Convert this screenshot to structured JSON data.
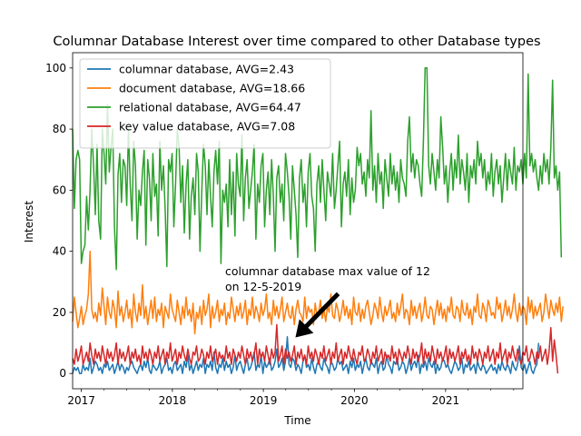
{
  "chart_data": {
    "type": "line",
    "title": "Columnar Database Interest over time compared to other Database types",
    "xlabel": "Time",
    "ylabel": "Interest",
    "xlim": [
      "2016-11-27",
      "2021-11-07"
    ],
    "ylim": [
      -5,
      105
    ],
    "x_ticks": [
      "2017",
      "2018",
      "2019",
      "2020",
      "2021"
    ],
    "y_ticks": [
      "0",
      "20",
      "40",
      "60",
      "80",
      "100"
    ],
    "grid": false,
    "legend": "top-left",
    "series_x": {
      "start": "2016-11-27",
      "end": "2021-11-07",
      "frequency": "weekly"
    },
    "series": [
      {
        "name": "columnar database, AVG=2.43",
        "color": "#1f77b4",
        "values": [
          0,
          2,
          1,
          2,
          0,
          0,
          3,
          1,
          2,
          1,
          5,
          0,
          2,
          4,
          3,
          1,
          2,
          0,
          3,
          2,
          4,
          1,
          2,
          3,
          0,
          2,
          4,
          1,
          3,
          2,
          0,
          2,
          1,
          3,
          4,
          2,
          1,
          0,
          2,
          3,
          1,
          4,
          2,
          5,
          1,
          0,
          3,
          2,
          1,
          2,
          4,
          0,
          2,
          3,
          5,
          1,
          2,
          0,
          3,
          4,
          1,
          2,
          3,
          0,
          4,
          2,
          6,
          1,
          3,
          0,
          2,
          4,
          1,
          3,
          2,
          5,
          0,
          3,
          2,
          4,
          1,
          7,
          2,
          0,
          3,
          2,
          5,
          1,
          4,
          2,
          3,
          0,
          2,
          6,
          1,
          3,
          4,
          2,
          0,
          3,
          5,
          1,
          2,
          4,
          7,
          1,
          3,
          2,
          6,
          0,
          4,
          2,
          3,
          5,
          1,
          2,
          4,
          8,
          2,
          3,
          5,
          1,
          4,
          12,
          3,
          2,
          5,
          4,
          1,
          3,
          2,
          0,
          4,
          6,
          2,
          3,
          1,
          5,
          2,
          0,
          3,
          4,
          2,
          1,
          5,
          3,
          2,
          0,
          4,
          3,
          1,
          2,
          5,
          3,
          4,
          1,
          2,
          3,
          0,
          4,
          2,
          5,
          1,
          3,
          2,
          4,
          0,
          3,
          5,
          2,
          1,
          4,
          3,
          2,
          5,
          0,
          3,
          4,
          1,
          2,
          6,
          3,
          2,
          0,
          4,
          3,
          5,
          1,
          2,
          4,
          3,
          0,
          2,
          5,
          1,
          3,
          4,
          2,
          6,
          0,
          3,
          2,
          4,
          1,
          5,
          3,
          2,
          4,
          0,
          3,
          1,
          2,
          5,
          4,
          2,
          3,
          1,
          0,
          2,
          4,
          3,
          1,
          2,
          5,
          0,
          3,
          2,
          4,
          1,
          2,
          3,
          0,
          4,
          2,
          1,
          3,
          2,
          0,
          1,
          2,
          3,
          1,
          2,
          0,
          3,
          1,
          4,
          2,
          1,
          3,
          2,
          0,
          4,
          2,
          1,
          3,
          9,
          2,
          1,
          3,
          0,
          2,
          4,
          1,
          0,
          2,
          3,
          10
        ]
      },
      {
        "name": "document database, AVG=18.66",
        "color": "#ff7f0e",
        "values": [
          17,
          25,
          20,
          15,
          18,
          22,
          16,
          19,
          21,
          26,
          40,
          21,
          18,
          20,
          17,
          23,
          19,
          28,
          22,
          16,
          25,
          20,
          18,
          24,
          21,
          15,
          27,
          19,
          22,
          17,
          20,
          24,
          18,
          21,
          15,
          26,
          20,
          17,
          23,
          19,
          29,
          18,
          22,
          16,
          20,
          24,
          18,
          25,
          17,
          21,
          19,
          23,
          15,
          22,
          20,
          18,
          26,
          21,
          19,
          17,
          24,
          20,
          16,
          22,
          18,
          25,
          19,
          21,
          17,
          23,
          13,
          20,
          18,
          22,
          16,
          24,
          19,
          21,
          26,
          15,
          22,
          18,
          20,
          24,
          17,
          21,
          19,
          23,
          16,
          20,
          18,
          25,
          21,
          17,
          22,
          19,
          23,
          18,
          20,
          24,
          16,
          21,
          19,
          25,
          18,
          22,
          20,
          17,
          23,
          19,
          21,
          26,
          18,
          20,
          16,
          24,
          19,
          22,
          18,
          21,
          25,
          17,
          20,
          23,
          19,
          18,
          22,
          16,
          21,
          24,
          20,
          19,
          17,
          25,
          18,
          22,
          20,
          21,
          16,
          23,
          19,
          20,
          24,
          18,
          21,
          17,
          22,
          20,
          26,
          19,
          18,
          23,
          21,
          17,
          20,
          24,
          19,
          22,
          18,
          21,
          16,
          25,
          20,
          19,
          23,
          17,
          21,
          18,
          22,
          24,
          20,
          16,
          19,
          23,
          21,
          18,
          25,
          20,
          17,
          22,
          19,
          21,
          24,
          18,
          20,
          17,
          23,
          19,
          22,
          26,
          18,
          21,
          20,
          16,
          24,
          19,
          22,
          18,
          21,
          23,
          17,
          20,
          25,
          19,
          18,
          22,
          21,
          16,
          20,
          24,
          19,
          23,
          18,
          21,
          17,
          22,
          20,
          25,
          19,
          18,
          22,
          21,
          17,
          24,
          20,
          19,
          23,
          18,
          21,
          16,
          22,
          20,
          26,
          19,
          18,
          23,
          21,
          17,
          24,
          22,
          19,
          20,
          18,
          25,
          21,
          23,
          17,
          20,
          24,
          19,
          22,
          18,
          21,
          26,
          20,
          17,
          23,
          19,
          22,
          21,
          16,
          25,
          20,
          24,
          18,
          22,
          19,
          21,
          23,
          17,
          20,
          26,
          22,
          18,
          24,
          21,
          19,
          23,
          20,
          25,
          17,
          22
        ]
      },
      {
        "name": "relational database, AVG=64.47",
        "color": "#2ca02c",
        "values": [
          80,
          54,
          70,
          73,
          70,
          36,
          40,
          42,
          58,
          47,
          60,
          80,
          68,
          52,
          75,
          50,
          44,
          80,
          72,
          62,
          88,
          66,
          74,
          80,
          48,
          34,
          65,
          72,
          56,
          70,
          68,
          55,
          80,
          62,
          50,
          76,
          68,
          44,
          60,
          55,
          66,
          73,
          42,
          70,
          64,
          50,
          72,
          58,
          62,
          45,
          76,
          60,
          68,
          54,
          35,
          70,
          66,
          72,
          48,
          62,
          80,
          74,
          56,
          68,
          46,
          62,
          70,
          44,
          58,
          64,
          52,
          72,
          66,
          40,
          60,
          75,
          68,
          52,
          70,
          58,
          48,
          66,
          73,
          62,
          76,
          36,
          60,
          56,
          62,
          48,
          70,
          52,
          66,
          45,
          72,
          62,
          58,
          78,
          50,
          64,
          70,
          54,
          60,
          66,
          75,
          44,
          62,
          56,
          68,
          72,
          48,
          60,
          66,
          52,
          70,
          58,
          40,
          64,
          68,
          56,
          62,
          50,
          72,
          66,
          58,
          44,
          68,
          60,
          52,
          38,
          64,
          70,
          56,
          62,
          48,
          66,
          72,
          58,
          54,
          40,
          62,
          68,
          56,
          70,
          60,
          50,
          66,
          62,
          58,
          72,
          54,
          60,
          68,
          76,
          48,
          62,
          66,
          58,
          70,
          52,
          64,
          56,
          60,
          74,
          68,
          72,
          62,
          66,
          58,
          70,
          64,
          86,
          60,
          68,
          56,
          72,
          62,
          66,
          54,
          70,
          64,
          58,
          72,
          62,
          68,
          60,
          66,
          56,
          70,
          64,
          62,
          58,
          76,
          84,
          66,
          72,
          64,
          70,
          68,
          62,
          58,
          76,
          100,
          100,
          68,
          62,
          72,
          66,
          60,
          70,
          64,
          84,
          74,
          62,
          68,
          56,
          66,
          72,
          60,
          70,
          64,
          78,
          62,
          70,
          66,
          60,
          72,
          56,
          68,
          64,
          70,
          62,
          76,
          68,
          72,
          64,
          70,
          60,
          66,
          62,
          72,
          58,
          66,
          70,
          62,
          68,
          56,
          64,
          72,
          60,
          70,
          66,
          62,
          74,
          60,
          68,
          66,
          70,
          62,
          72,
          64,
          98,
          68,
          72,
          66,
          70,
          64,
          60,
          68,
          62,
          72,
          66,
          70,
          62,
          74,
          96,
          64,
          68,
          60,
          66,
          38
        ]
      },
      {
        "name": "key value database, AVG=7.08",
        "color": "#d62728",
        "values": [
          5,
          3,
          8,
          4,
          6,
          9,
          3,
          5,
          7,
          4,
          10,
          6,
          3,
          8,
          5,
          7,
          4,
          9,
          6,
          3,
          8,
          5,
          7,
          4,
          6,
          10,
          3,
          8,
          5,
          7,
          4,
          6,
          9,
          3,
          7,
          5,
          8,
          4,
          6,
          3,
          9,
          5,
          7,
          4,
          8,
          6,
          3,
          7,
          5,
          9,
          4,
          6,
          8,
          3,
          7,
          5,
          10,
          4,
          6,
          8,
          3,
          7,
          5,
          9,
          6,
          4,
          8,
          5,
          3,
          7,
          6,
          9,
          4,
          5,
          8,
          6,
          3,
          7,
          5,
          9,
          4,
          6,
          8,
          3,
          7,
          5,
          6,
          4,
          9,
          5,
          7,
          3,
          8,
          6,
          4,
          7,
          5,
          9,
          6,
          3,
          8,
          5,
          7,
          4,
          6,
          10,
          3,
          8,
          5,
          7,
          4,
          9,
          6,
          3,
          8,
          5,
          7,
          16,
          4,
          6,
          9,
          3,
          8,
          5,
          7,
          4,
          6,
          9,
          3,
          7,
          5,
          8,
          4,
          6,
          3,
          9,
          5,
          7,
          4,
          8,
          6,
          3,
          7,
          5,
          9,
          4,
          6,
          8,
          3,
          7,
          5,
          10,
          4,
          6,
          8,
          3,
          7,
          5,
          9,
          6,
          4,
          8,
          5,
          3,
          7,
          6,
          9,
          4,
          5,
          8,
          6,
          3,
          7,
          5,
          9,
          4,
          6,
          8,
          3,
          7,
          5,
          6,
          4,
          9,
          5,
          7,
          3,
          8,
          6,
          4,
          7,
          5,
          9,
          6,
          3,
          8,
          5,
          7,
          4,
          6,
          10,
          3,
          8,
          5,
          7,
          4,
          9,
          6,
          3,
          8,
          5,
          7,
          4,
          6,
          9,
          3,
          8,
          5,
          7,
          4,
          6,
          9,
          3,
          7,
          5,
          8,
          4,
          6,
          3,
          9,
          5,
          7,
          4,
          8,
          6,
          3,
          7,
          5,
          9,
          4,
          6,
          8,
          3,
          7,
          5,
          10,
          4,
          6,
          8,
          3,
          7,
          5,
          9,
          6,
          4,
          8,
          5,
          3,
          7,
          6,
          9,
          4,
          5,
          8,
          6,
          3,
          7,
          5,
          9,
          4,
          6,
          8,
          3,
          7,
          15,
          4,
          11,
          6,
          0
        ]
      }
    ],
    "annotation": {
      "text_lines": [
        "columnar database max value of 12",
        "on 12-5-2019"
      ],
      "arrow_target": {
        "x": "2019-05-12",
        "y": 12
      },
      "arrow_tail": {
        "x": "2019-10-27",
        "y": 26
      },
      "arrow_color": "#000000"
    }
  }
}
